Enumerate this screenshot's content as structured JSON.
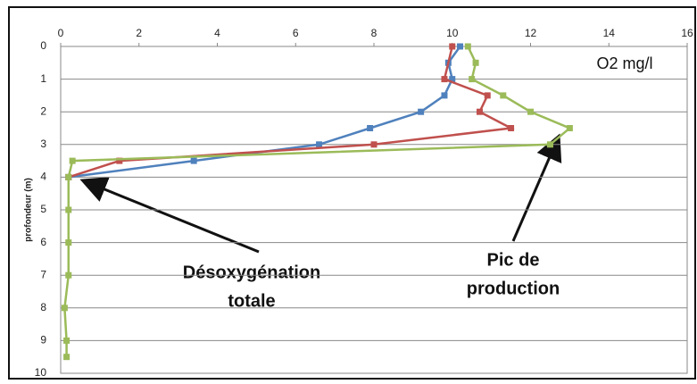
{
  "chart_data": {
    "type": "line",
    "x_label": "O2 mg/l",
    "y_label": "profondeur (m)",
    "annotations": [
      "Désoxygénation",
      "totale",
      "Pic de",
      "production"
    ],
    "xlim": [
      0,
      16
    ],
    "xticks": [
      0,
      2,
      4,
      6,
      8,
      10,
      12,
      14,
      16
    ],
    "ylim": [
      0,
      10
    ],
    "yticks": [
      0,
      1,
      2,
      3,
      4,
      5,
      6,
      7,
      8,
      9,
      10
    ],
    "y_inverted": true,
    "x_axis_position": "top",
    "grid": true,
    "series": [
      {
        "color": "#4f81bd",
        "x": [
          10.2,
          9.9,
          10.0,
          9.8,
          9.2,
          7.9,
          6.6,
          3.4,
          0.2
        ],
        "y": [
          0,
          0.5,
          1,
          1.5,
          2,
          2.5,
          3,
          3.5,
          4
        ]
      },
      {
        "color": "#c0504d",
        "x": [
          10.0,
          9.8,
          10.9,
          10.7,
          11.5,
          8.0,
          1.5,
          0.2
        ],
        "y": [
          0,
          1,
          1.5,
          2,
          2.5,
          3,
          3.5,
          4
        ]
      },
      {
        "color": "#9bbb59",
        "x": [
          10.4,
          10.6,
          10.5,
          11.3,
          12.0,
          13.0,
          12.5,
          0.3,
          0.2,
          0.2,
          0.2,
          0.2,
          0.1,
          0.15,
          0.15
        ],
        "y": [
          0,
          0.5,
          1,
          1.5,
          2,
          2.5,
          3,
          3.5,
          4,
          5,
          6,
          7,
          8,
          9,
          9.5
        ]
      }
    ]
  }
}
